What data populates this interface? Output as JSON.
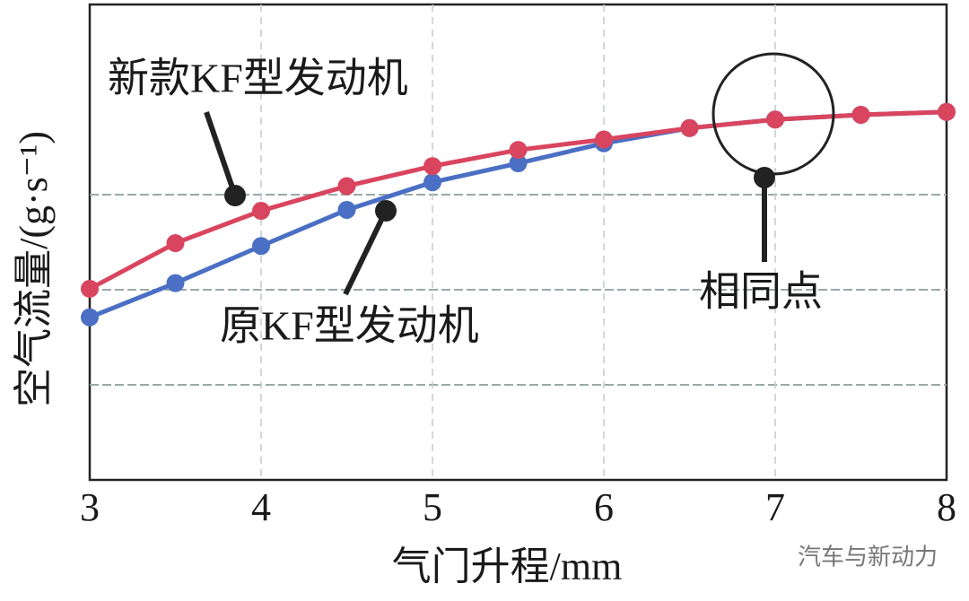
{
  "chart_data": {
    "type": "line",
    "x_label": "气门升程/mm",
    "y_label": "空气流量/(g·s⁻¹)",
    "x": [
      3,
      3.5,
      4,
      4.5,
      5,
      5.5,
      6,
      6.5,
      7,
      7.5,
      8
    ],
    "series": [
      {
        "name": "新款KF型发动机",
        "color": "#d9455f",
        "values": [
          2.01,
          2.49,
          2.83,
          3.09,
          3.3,
          3.47,
          3.58,
          3.7,
          3.79,
          3.84,
          3.87
        ]
      },
      {
        "name": "原KF型发动机",
        "color": "#4a6fc4",
        "values": [
          1.71,
          2.07,
          2.46,
          2.84,
          3.13,
          3.33,
          3.54,
          3.7,
          3.79,
          3.84,
          3.87
        ]
      }
    ],
    "annotations": [
      "相同点"
    ],
    "watermark": "汽车与新动力",
    "xlim": [
      3,
      8
    ],
    "xticks": [
      3,
      4,
      5,
      6,
      7,
      8
    ],
    "ylim": [
      0,
      5
    ],
    "ygrid": [
      1,
      2,
      3
    ],
    "grid": true
  }
}
